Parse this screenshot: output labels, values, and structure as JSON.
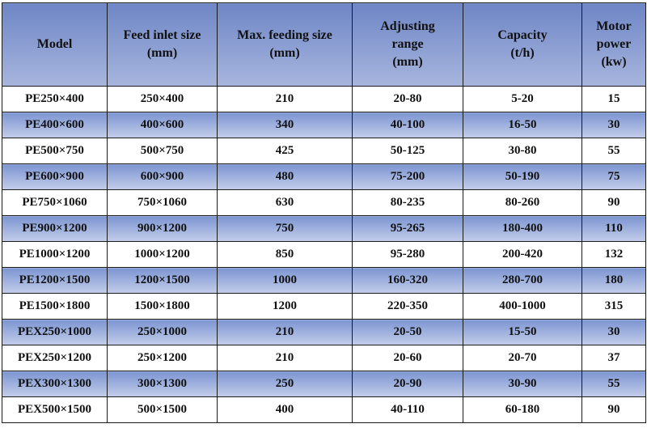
{
  "table": {
    "headers": [
      [
        "Model"
      ],
      [
        "Feed inlet size",
        "(mm)"
      ],
      [
        "Max. feeding size",
        "(mm)"
      ],
      [
        "Adjusting",
        "range",
        "(mm)"
      ],
      [
        "Capacity",
        "(t/h)"
      ],
      [
        "Motor",
        "power",
        "(kw)"
      ]
    ],
    "rows": [
      [
        "PE250×400",
        "250×400",
        "210",
        "20-80",
        "5-20",
        "15"
      ],
      [
        "PE400×600",
        "400×600",
        "340",
        "40-100",
        "16-50",
        "30"
      ],
      [
        "PE500×750",
        "500×750",
        "425",
        "50-125",
        "30-80",
        "55"
      ],
      [
        "PE600×900",
        "600×900",
        "480",
        "75-200",
        "50-190",
        "75"
      ],
      [
        "PE750×1060",
        "750×1060",
        "630",
        "80-235",
        "80-260",
        "90"
      ],
      [
        "PE900×1200",
        "900×1200",
        "750",
        "95-265",
        "180-400",
        "110"
      ],
      [
        "PE1000×1200",
        "1000×1200",
        "850",
        "95-280",
        "200-420",
        "132"
      ],
      [
        "PE1200×1500",
        "1200×1500",
        "1000",
        "160-320",
        "280-700",
        "180"
      ],
      [
        "PE1500×1800",
        "1500×1800",
        "1200",
        "220-350",
        "400-1000",
        "315"
      ],
      [
        "PEX250×1000",
        "250×1000",
        "210",
        "20-50",
        "15-50",
        "30"
      ],
      [
        "PEX250×1200",
        "250×1200",
        "210",
        "20-60",
        "20-70",
        "37"
      ],
      [
        "PEX300×1300",
        "300×1300",
        "250",
        "20-90",
        "30-90",
        "55"
      ],
      [
        "PEX500×1500",
        "500×1500",
        "400",
        "40-110",
        "60-180",
        "90"
      ]
    ]
  },
  "colors": {
    "header_top": "#6e86c6",
    "header_bottom": "#a8b6de",
    "band_top": "#7c95d2",
    "band_bottom": "#c3cdea",
    "border": "#1a1a1a"
  }
}
